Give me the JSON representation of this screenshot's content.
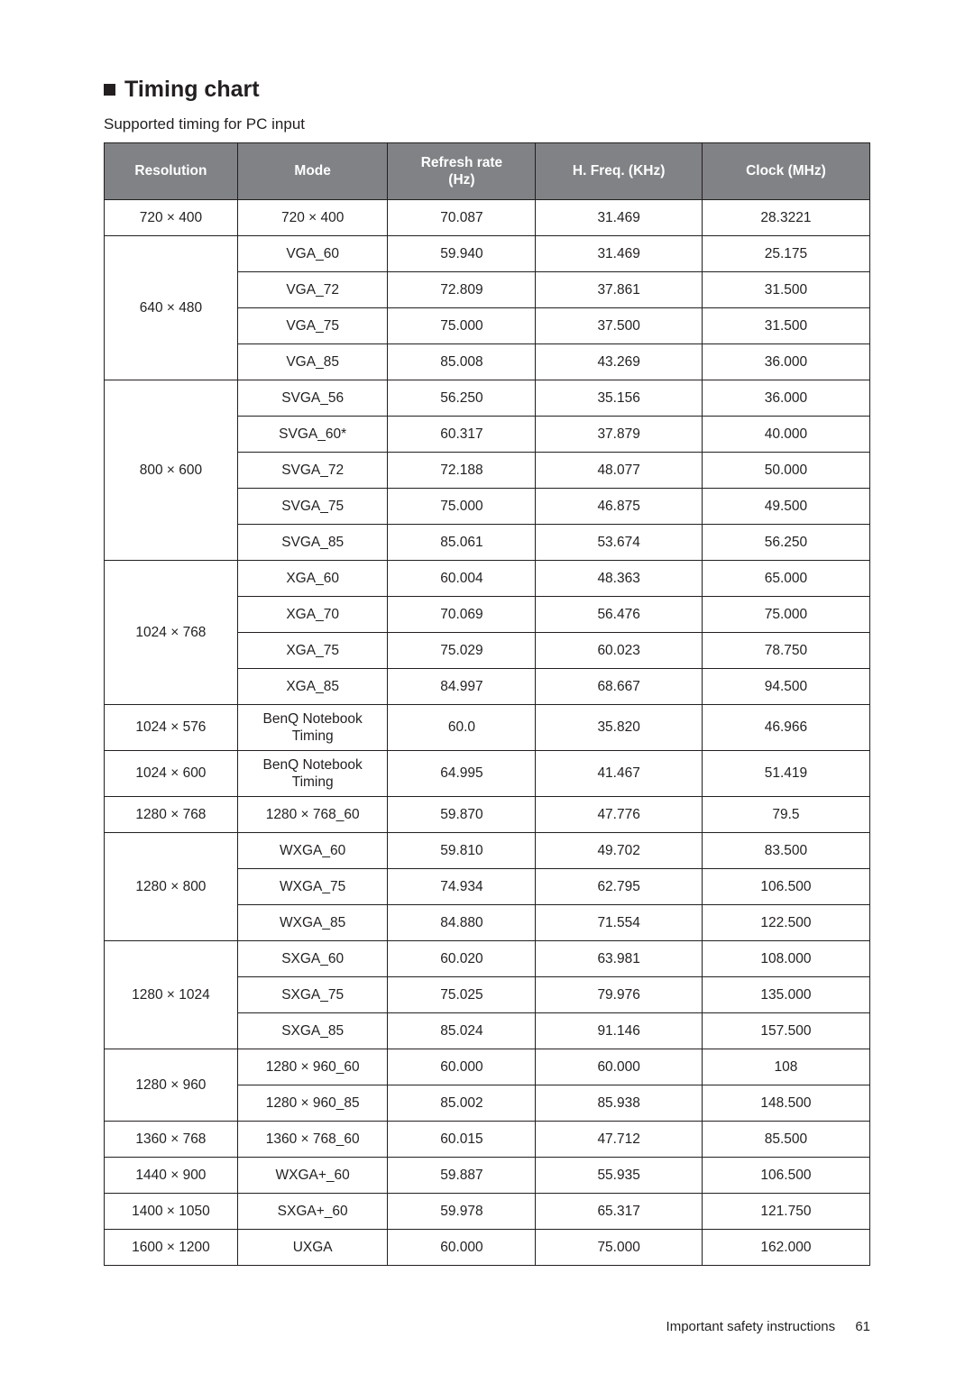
{
  "heading": "Timing chart",
  "subheading": "Supported timing for PC input",
  "columns": [
    "Resolution",
    "Mode",
    "Refresh rate (Hz)",
    "H. Freq. (KHz)",
    "Clock (MHz)"
  ],
  "groups": [
    {
      "resolution": "720 × 400",
      "rows": [
        {
          "mode": "720 × 400",
          "refresh": "70.087",
          "hfreq": "31.469",
          "clock": "28.3221"
        }
      ]
    },
    {
      "resolution": "640 × 480",
      "rows": [
        {
          "mode": "VGA_60",
          "refresh": "59.940",
          "hfreq": "31.469",
          "clock": "25.175"
        },
        {
          "mode": "VGA_72",
          "refresh": "72.809",
          "hfreq": "37.861",
          "clock": "31.500"
        },
        {
          "mode": "VGA_75",
          "refresh": "75.000",
          "hfreq": "37.500",
          "clock": "31.500"
        },
        {
          "mode": "VGA_85",
          "refresh": "85.008",
          "hfreq": "43.269",
          "clock": "36.000"
        }
      ]
    },
    {
      "resolution": "800 × 600",
      "rows": [
        {
          "mode": "SVGA_56",
          "refresh": "56.250",
          "hfreq": "35.156",
          "clock": "36.000"
        },
        {
          "mode": "SVGA_60*",
          "refresh": "60.317",
          "hfreq": "37.879",
          "clock": "40.000"
        },
        {
          "mode": "SVGA_72",
          "refresh": "72.188",
          "hfreq": "48.077",
          "clock": "50.000"
        },
        {
          "mode": "SVGA_75",
          "refresh": "75.000",
          "hfreq": "46.875",
          "clock": "49.500"
        },
        {
          "mode": "SVGA_85",
          "refresh": "85.061",
          "hfreq": "53.674",
          "clock": "56.250"
        }
      ]
    },
    {
      "resolution": "1024 × 768",
      "rows": [
        {
          "mode": "XGA_60",
          "refresh": "60.004",
          "hfreq": "48.363",
          "clock": "65.000"
        },
        {
          "mode": "XGA_70",
          "refresh": "70.069",
          "hfreq": "56.476",
          "clock": "75.000"
        },
        {
          "mode": "XGA_75",
          "refresh": "75.029",
          "hfreq": "60.023",
          "clock": "78.750"
        },
        {
          "mode": "XGA_85",
          "refresh": "84.997",
          "hfreq": "68.667",
          "clock": "94.500"
        }
      ]
    },
    {
      "resolution": "1024 × 576",
      "tall": true,
      "rows": [
        {
          "mode": "BenQ Notebook Timing",
          "refresh": "60.0",
          "hfreq": "35.820",
          "clock": "46.966"
        }
      ]
    },
    {
      "resolution": "1024 × 600",
      "tall": true,
      "rows": [
        {
          "mode": "BenQ Notebook Timing",
          "refresh": "64.995",
          "hfreq": "41.467",
          "clock": "51.419"
        }
      ]
    },
    {
      "resolution": "1280 × 768",
      "rows": [
        {
          "mode": "1280 × 768_60",
          "refresh": "59.870",
          "hfreq": "47.776",
          "clock": "79.5"
        }
      ]
    },
    {
      "resolution": "1280 × 800",
      "rows": [
        {
          "mode": "WXGA_60",
          "refresh": "59.810",
          "hfreq": "49.702",
          "clock": "83.500"
        },
        {
          "mode": "WXGA_75",
          "refresh": "74.934",
          "hfreq": "62.795",
          "clock": "106.500"
        },
        {
          "mode": "WXGA_85",
          "refresh": "84.880",
          "hfreq": "71.554",
          "clock": "122.500"
        }
      ]
    },
    {
      "resolution": "1280 × 1024",
      "rows": [
        {
          "mode": "SXGA_60",
          "refresh": "60.020",
          "hfreq": "63.981",
          "clock": "108.000"
        },
        {
          "mode": "SXGA_75",
          "refresh": "75.025",
          "hfreq": "79.976",
          "clock": "135.000"
        },
        {
          "mode": "SXGA_85",
          "refresh": "85.024",
          "hfreq": "91.146",
          "clock": "157.500"
        }
      ]
    },
    {
      "resolution": "1280 × 960",
      "rows": [
        {
          "mode": "1280 × 960_60",
          "refresh": "60.000",
          "hfreq": "60.000",
          "clock": "108"
        },
        {
          "mode": "1280 × 960_85",
          "refresh": "85.002",
          "hfreq": "85.938",
          "clock": "148.500"
        }
      ]
    },
    {
      "resolution": "1360 × 768",
      "rows": [
        {
          "mode": "1360 × 768_60",
          "refresh": "60.015",
          "hfreq": "47.712",
          "clock": "85.500"
        }
      ]
    },
    {
      "resolution": "1440 × 900",
      "rows": [
        {
          "mode": "WXGA+_60",
          "refresh": "59.887",
          "hfreq": "55.935",
          "clock": "106.500"
        }
      ]
    },
    {
      "resolution": "1400 × 1050",
      "rows": [
        {
          "mode": "SXGA+_60",
          "refresh": "59.978",
          "hfreq": "65.317",
          "clock": "121.750"
        }
      ]
    },
    {
      "resolution": "1600 × 1200",
      "rows": [
        {
          "mode": "UXGA",
          "refresh": "60.000",
          "hfreq": "75.000",
          "clock": "162.000"
        }
      ]
    }
  ],
  "footer": {
    "text": "Important safety instructions",
    "page": "61"
  },
  "colwidths": [
    "17.4%",
    "19.6%",
    "19.3%",
    "21.7%",
    "21.9%"
  ]
}
